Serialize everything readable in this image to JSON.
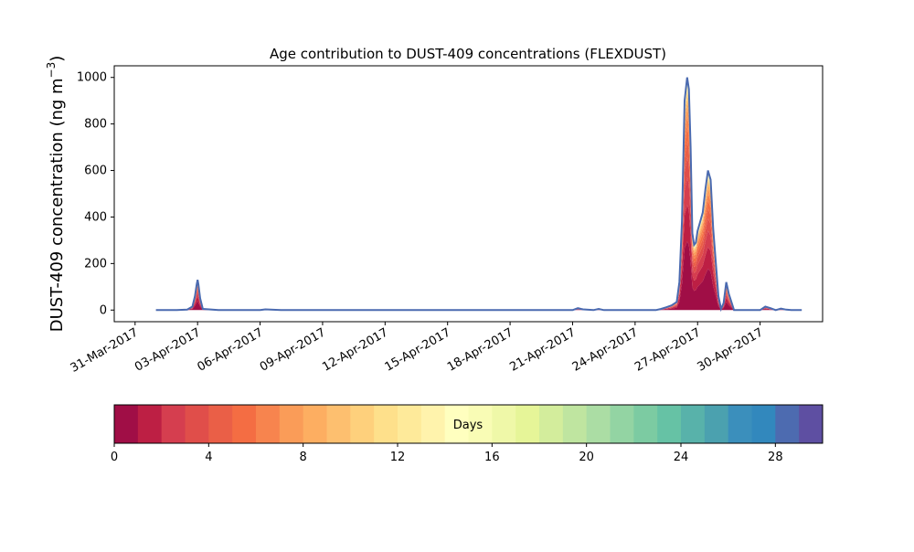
{
  "chart_data": {
    "type": "area",
    "title": "Age contribution to DUST-409 concentrations (FLEXDUST)",
    "ylabel": "DUST-409 concentration (ng m",
    "ylabel_superscript": "−3",
    "ylabel_close": ")",
    "xlabel": "",
    "stacked": true,
    "grid": false,
    "xlim": [
      "2017-03-30",
      "2017-05-03"
    ],
    "ylim": [
      -50,
      1050
    ],
    "yticks": [
      0,
      200,
      400,
      600,
      800,
      1000
    ],
    "xticks": [
      "31-Mar-2017",
      "03-Apr-2017",
      "06-Apr-2017",
      "09-Apr-2017",
      "12-Apr-2017",
      "15-Apr-2017",
      "18-Apr-2017",
      "21-Apr-2017",
      "24-Apr-2017",
      "27-Apr-2017",
      "30-Apr-2017"
    ],
    "xtick_dates": [
      "2017-03-31",
      "2017-04-03",
      "2017-04-06",
      "2017-04-09",
      "2017-04-12",
      "2017-04-15",
      "2017-04-18",
      "2017-04-21",
      "2017-04-24",
      "2017-04-27",
      "2017-04-30"
    ],
    "total_concentration": {
      "x": [
        "2017-04-01",
        "2017-04-02",
        "2017-04-02 12:00",
        "2017-04-02 18:00",
        "2017-04-02 21:00",
        "2017-04-02 23:00",
        "2017-04-03",
        "2017-04-03 01:00",
        "2017-04-03 03:00",
        "2017-04-03 06:00",
        "2017-04-04",
        "2017-04-06",
        "2017-04-06 06:00",
        "2017-04-07",
        "2017-04-20",
        "2017-04-21",
        "2017-04-21 06:00",
        "2017-04-21 12:00",
        "2017-04-22",
        "2017-04-22 06:00",
        "2017-04-22 12:00",
        "2017-04-24",
        "2017-04-25",
        "2017-04-25 06:00",
        "2017-04-25 12:00",
        "2017-04-25 18:00",
        "2017-04-26",
        "2017-04-26 03:00",
        "2017-04-26 06:00",
        "2017-04-26 09:00",
        "2017-04-26 12:00",
        "2017-04-26 14:00",
        "2017-04-26 16:00",
        "2017-04-26 18:00",
        "2017-04-26 20:00",
        "2017-04-26 22:00",
        "2017-04-27",
        "2017-04-27 03:00",
        "2017-04-27 06:00",
        "2017-04-27 09:00",
        "2017-04-27 12:00",
        "2017-04-27 15:00",
        "2017-04-27 18:00",
        "2017-04-28",
        "2017-04-28 03:00",
        "2017-04-28 06:00",
        "2017-04-28 09:00",
        "2017-04-28 12:00",
        "2017-04-28 18:00",
        "2017-04-29",
        "2017-04-30",
        "2017-04-30 06:00",
        "2017-04-30 12:00",
        "2017-04-30 18:00",
        "2017-05-01",
        "2017-05-01 06:00",
        "2017-05-01 12:00",
        "2017-05-02"
      ],
      "y": [
        0,
        0,
        2,
        15,
        60,
        110,
        130,
        110,
        50,
        5,
        0,
        0,
        3,
        0,
        0,
        0,
        8,
        3,
        0,
        5,
        0,
        0,
        0,
        5,
        12,
        20,
        35,
        120,
        380,
        900,
        1000,
        950,
        700,
        330,
        280,
        290,
        340,
        380,
        420,
        520,
        600,
        560,
        350,
        60,
        5,
        30,
        120,
        70,
        0,
        0,
        0,
        15,
        8,
        0,
        6,
        2,
        0,
        0
      ]
    },
    "age_layer_fractions": [
      0.3,
      0.16,
      0.12,
      0.09,
      0.07,
      0.06,
      0.05,
      0.04,
      0.03,
      0.02,
      0.015,
      0.012,
      0.01,
      0.008,
      0.006,
      0.005,
      0.004,
      0.003,
      0.002,
      0.002,
      0.001,
      0.001,
      0.001,
      0.001,
      0.001,
      0.001,
      0.001,
      0.001,
      0.001,
      0.001
    ],
    "colorbar": {
      "label": "Days",
      "min": 0,
      "max": 30,
      "ticks": [
        0,
        4,
        8,
        12,
        16,
        20,
        24,
        28
      ],
      "colors": [
        "#a00e46",
        "#bd1f44",
        "#d53e4f",
        "#e04e4a",
        "#ea5f47",
        "#f46d43",
        "#f7844e",
        "#fa9c58",
        "#fdae61",
        "#fdbf6f",
        "#fed07c",
        "#fee08b",
        "#feea9a",
        "#fff3ac",
        "#ffffbf",
        "#f9fcb5",
        "#eff8a8",
        "#e6f598",
        "#d3ed9c",
        "#bfe5a0",
        "#abdda4",
        "#93d4a3",
        "#7ccba2",
        "#66c2a5",
        "#58b2aa",
        "#4ba1af",
        "#3b8fbc",
        "#3288bd",
        "#4d6bb0",
        "#5e4fa2"
      ]
    },
    "outline_color": "#4a6ab0"
  }
}
